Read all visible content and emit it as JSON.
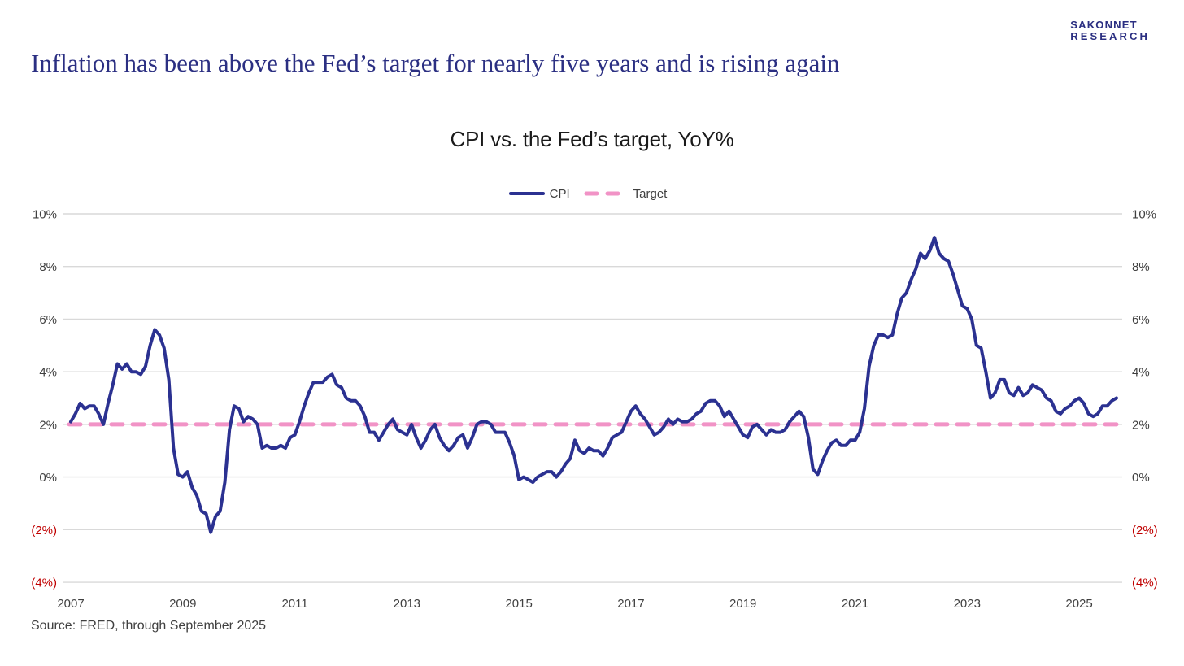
{
  "brand": {
    "line1": "SAKONNET",
    "line2": "RESEARCH"
  },
  "headline": "Inflation has been above the Fed’s target for nearly five years and is rising again",
  "source": "Source: FRED, through September 2025",
  "colors": {
    "brand_navy": "#2b2f82",
    "cpi_line": "#2b3191",
    "target_pink": "#f193c6",
    "gridline": "#d9d9d9",
    "axis_label": "#404040",
    "negative_label": "#c00000",
    "chart_title": "#1a1a1a"
  },
  "chart_data": {
    "type": "line",
    "title": "CPI vs. the Fed’s target, YoY%",
    "legend_position": "top-center",
    "grid": "horizontal",
    "ylim": [
      -4,
      10
    ],
    "x_start": "2007-01",
    "x_end": "2025-09",
    "x_tick_years": [
      "2007",
      "2009",
      "2011",
      "2013",
      "2015",
      "2017",
      "2019",
      "2021",
      "2023",
      "2025"
    ],
    "y_ticks": [
      {
        "label": "10%",
        "value": 10,
        "negative": false
      },
      {
        "label": "8%",
        "value": 8,
        "negative": false
      },
      {
        "label": "6%",
        "value": 6,
        "negative": false
      },
      {
        "label": "4%",
        "value": 4,
        "negative": false
      },
      {
        "label": "2%",
        "value": 2,
        "negative": false
      },
      {
        "label": "0%",
        "value": 0,
        "negative": false
      },
      {
        "label": "(2%)",
        "value": -2,
        "negative": true
      },
      {
        "label": "(4%)",
        "value": -4,
        "negative": true
      }
    ],
    "legend": [
      {
        "name": "CPI",
        "style": "solid",
        "color": "#2b3191"
      },
      {
        "name": "Target",
        "style": "dashed",
        "color": "#f193c6"
      }
    ],
    "target_value": 2,
    "series": [
      {
        "name": "CPI",
        "frequency": "monthly",
        "values": [
          2.1,
          2.4,
          2.8,
          2.6,
          2.7,
          2.7,
          2.4,
          2.0,
          2.8,
          3.5,
          4.3,
          4.1,
          4.3,
          4.0,
          4.0,
          3.9,
          4.2,
          5.0,
          5.6,
          5.4,
          4.9,
          3.7,
          1.1,
          0.1,
          0.0,
          0.2,
          -0.4,
          -0.7,
          -1.3,
          -1.4,
          -2.1,
          -1.5,
          -1.3,
          -0.2,
          1.8,
          2.7,
          2.6,
          2.1,
          2.3,
          2.2,
          2.0,
          1.1,
          1.2,
          1.1,
          1.1,
          1.2,
          1.1,
          1.5,
          1.6,
          2.1,
          2.7,
          3.2,
          3.6,
          3.6,
          3.6,
          3.8,
          3.9,
          3.5,
          3.4,
          3.0,
          2.9,
          2.9,
          2.7,
          2.3,
          1.7,
          1.7,
          1.4,
          1.7,
          2.0,
          2.2,
          1.8,
          1.7,
          1.6,
          2.0,
          1.5,
          1.1,
          1.4,
          1.8,
          2.0,
          1.5,
          1.2,
          1.0,
          1.2,
          1.5,
          1.6,
          1.1,
          1.5,
          2.0,
          2.1,
          2.1,
          2.0,
          1.7,
          1.7,
          1.7,
          1.3,
          0.8,
          -0.1,
          0.0,
          -0.1,
          -0.2,
          0.0,
          0.1,
          0.2,
          0.2,
          0.0,
          0.2,
          0.5,
          0.7,
          1.4,
          1.0,
          0.9,
          1.1,
          1.0,
          1.0,
          0.8,
          1.1,
          1.5,
          1.6,
          1.7,
          2.1,
          2.5,
          2.7,
          2.4,
          2.2,
          1.9,
          1.6,
          1.7,
          1.9,
          2.2,
          2.0,
          2.2,
          2.1,
          2.1,
          2.2,
          2.4,
          2.5,
          2.8,
          2.9,
          2.9,
          2.7,
          2.3,
          2.5,
          2.2,
          1.9,
          1.6,
          1.5,
          1.9,
          2.0,
          1.8,
          1.6,
          1.8,
          1.7,
          1.7,
          1.8,
          2.1,
          2.3,
          2.5,
          2.3,
          1.5,
          0.3,
          0.1,
          0.6,
          1.0,
          1.3,
          1.4,
          1.2,
          1.2,
          1.4,
          1.4,
          1.7,
          2.6,
          4.2,
          5.0,
          5.4,
          5.4,
          5.3,
          5.4,
          6.2,
          6.8,
          7.0,
          7.5,
          7.9,
          8.5,
          8.3,
          8.6,
          9.1,
          8.5,
          8.3,
          8.2,
          7.7,
          7.1,
          6.5,
          6.4,
          6.0,
          5.0,
          4.9,
          4.0,
          3.0,
          3.2,
          3.7,
          3.7,
          3.2,
          3.1,
          3.4,
          3.1,
          3.2,
          3.5,
          3.4,
          3.3,
          3.0,
          2.9,
          2.5,
          2.4,
          2.6,
          2.7,
          2.9,
          3.0,
          2.8,
          2.4,
          2.3,
          2.4,
          2.7,
          2.7,
          2.9,
          3.0
        ]
      },
      {
        "name": "Target",
        "constant": 2
      }
    ]
  }
}
